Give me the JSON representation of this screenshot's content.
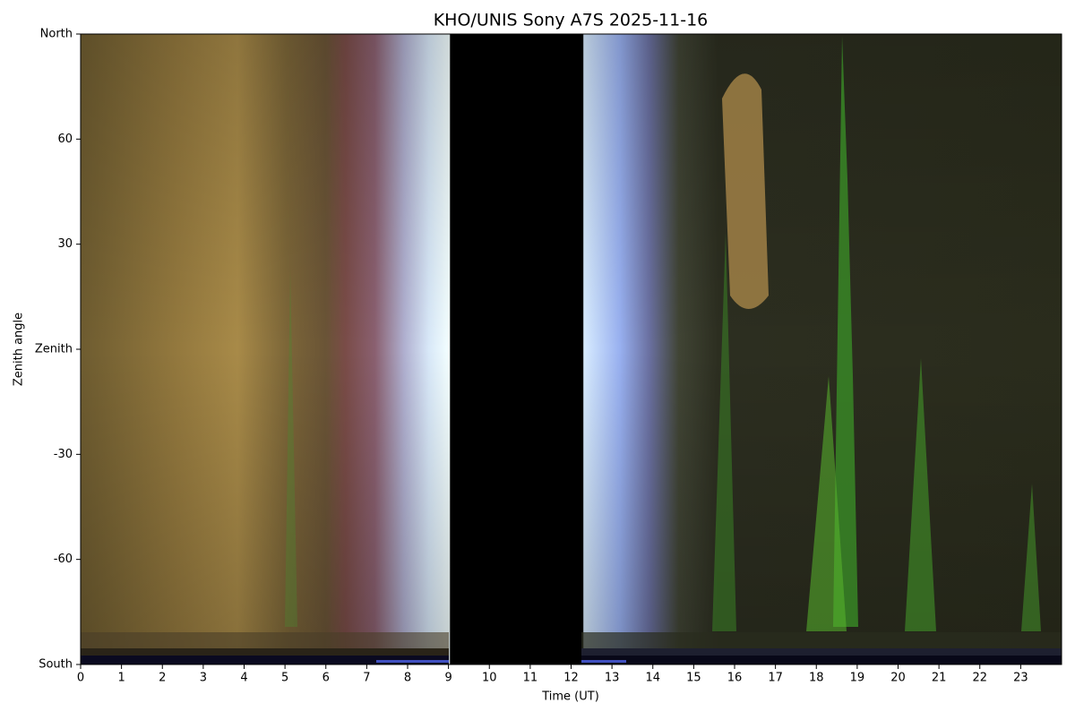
{
  "chart_data": {
    "type": "keogram",
    "title": "KHO/UNIS Sony A7S 2025-11-16",
    "x_label": "Time (UT)",
    "y_label": "Zenith angle",
    "xlim": [
      0,
      24
    ],
    "xticks": [
      0,
      1,
      2,
      3,
      4,
      5,
      6,
      7,
      8,
      9,
      10,
      11,
      12,
      13,
      14,
      15,
      16,
      17,
      18,
      19,
      20,
      21,
      22,
      23
    ],
    "ylim": [
      -90,
      90
    ],
    "yticks": [
      {
        "value": -90,
        "label": "South"
      },
      -60,
      -30,
      {
        "value": 0,
        "label": "Zenith"
      },
      30,
      60,
      {
        "value": 90,
        "label": "North"
      }
    ]
  }
}
